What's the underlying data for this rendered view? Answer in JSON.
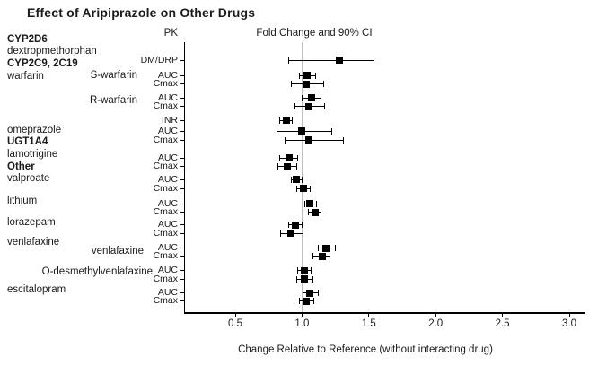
{
  "chart_data": {
    "type": "scatter",
    "subtype": "forest-plot",
    "title": "Effect of Aripiprazole on Other Drugs",
    "column_headers": {
      "pk": "PK",
      "ci": "Fold Change and 90% CI"
    },
    "xlabel": "Change Relative to Reference (without interacting drug)",
    "x_ticks": [
      "0.5",
      "1.0",
      "1.5",
      "2.0",
      "2.5",
      "3.0"
    ],
    "x_tick_values": [
      0.5,
      1.0,
      1.5,
      2.0,
      2.5,
      3.0
    ],
    "xlim": [
      0.12,
      3.1
    ],
    "reference_value": 1.0,
    "reference_line_color": "#bfbfbf",
    "marker_color": "#000000",
    "left_labels": [
      {
        "text": "CYP2D6",
        "bold": true
      },
      {
        "text": "dextropmethorphan",
        "bold": false
      },
      {
        "text": "CYP2C9, 2C19",
        "bold": true
      },
      {
        "text": "warfarin",
        "bold": false
      },
      {
        "text": "S-warfarin",
        "bold": false
      },
      {
        "text": "R-warfarin",
        "bold": false
      },
      {
        "text": "omeprazole",
        "bold": false
      },
      {
        "text": "UGT1A4",
        "bold": true
      },
      {
        "text": "lamotrigine",
        "bold": false
      },
      {
        "text": "Other",
        "bold": true
      },
      {
        "text": "valproate",
        "bold": false
      },
      {
        "text": "lithium",
        "bold": false
      },
      {
        "text": "lorazepam",
        "bold": false
      },
      {
        "text": "venlafaxine",
        "bold": false
      },
      {
        "text": "venlafaxine",
        "bold": false
      },
      {
        "text": "O-desmethylvenlafaxine",
        "bold": false
      },
      {
        "text": "escitalopram",
        "bold": false
      }
    ],
    "rows": [
      {
        "group": "CYP2D6",
        "drug": "dextropmethorphan",
        "pk": "DM/DRP",
        "value": 1.28,
        "ci_low": 0.9,
        "ci_high": 1.54
      },
      {
        "group": "CYP2C9, 2C19",
        "drug": "S-warfarin",
        "pk": "AUC",
        "value": 1.04,
        "ci_low": 0.98,
        "ci_high": 1.1
      },
      {
        "drug": "S-warfarin",
        "pk": "Cmax",
        "value": 1.03,
        "ci_low": 0.92,
        "ci_high": 1.16
      },
      {
        "drug": "R-warfarin",
        "pk": "AUC",
        "value": 1.07,
        "ci_low": 1.0,
        "ci_high": 1.14
      },
      {
        "drug": "R-warfarin",
        "pk": "Cmax",
        "value": 1.05,
        "ci_low": 0.95,
        "ci_high": 1.17
      },
      {
        "drug": "warfarin",
        "pk": "INR",
        "value": 0.88,
        "ci_low": 0.83,
        "ci_high": 0.93
      },
      {
        "drug": "omeprazole",
        "pk": "AUC",
        "value": 1.0,
        "ci_low": 0.81,
        "ci_high": 1.22
      },
      {
        "drug": "omeprazole",
        "pk": "Cmax",
        "value": 1.05,
        "ci_low": 0.87,
        "ci_high": 1.31
      },
      {
        "group": "UGT1A4",
        "drug": "lamotrigine",
        "pk": "AUC",
        "value": 0.9,
        "ci_low": 0.83,
        "ci_high": 0.97
      },
      {
        "drug": "lamotrigine",
        "pk": "Cmax",
        "value": 0.89,
        "ci_low": 0.82,
        "ci_high": 0.96
      },
      {
        "group": "Other",
        "drug": "valproate",
        "pk": "AUC",
        "value": 0.96,
        "ci_low": 0.92,
        "ci_high": 1.0
      },
      {
        "drug": "valproate",
        "pk": "Cmax",
        "value": 1.01,
        "ci_low": 0.96,
        "ci_high": 1.06
      },
      {
        "drug": "lithium",
        "pk": "AUC",
        "value": 1.06,
        "ci_low": 1.02,
        "ci_high": 1.11
      },
      {
        "drug": "lithium",
        "pk": "Cmax",
        "value": 1.1,
        "ci_low": 1.05,
        "ci_high": 1.14
      },
      {
        "drug": "lorazepam",
        "pk": "AUC",
        "value": 0.95,
        "ci_low": 0.9,
        "ci_high": 1.0
      },
      {
        "drug": "lorazepam",
        "pk": "Cmax",
        "value": 0.92,
        "ci_low": 0.84,
        "ci_high": 1.01
      },
      {
        "drug": "venlafaxine",
        "pk": "AUC",
        "value": 1.18,
        "ci_low": 1.12,
        "ci_high": 1.25
      },
      {
        "drug": "venlafaxine",
        "pk": "Cmax",
        "value": 1.15,
        "ci_low": 1.08,
        "ci_high": 1.21
      },
      {
        "drug": "O-desmethylvenlafaxine",
        "pk": "AUC",
        "value": 1.02,
        "ci_low": 0.97,
        "ci_high": 1.07
      },
      {
        "drug": "O-desmethylvenlafaxine",
        "pk": "Cmax",
        "value": 1.02,
        "ci_low": 0.96,
        "ci_high": 1.08
      },
      {
        "drug": "escitalopram",
        "pk": "AUC",
        "value": 1.06,
        "ci_low": 1.01,
        "ci_high": 1.12
      },
      {
        "drug": "escitalopram",
        "pk": "Cmax",
        "value": 1.03,
        "ci_low": 0.98,
        "ci_high": 1.09
      }
    ]
  }
}
